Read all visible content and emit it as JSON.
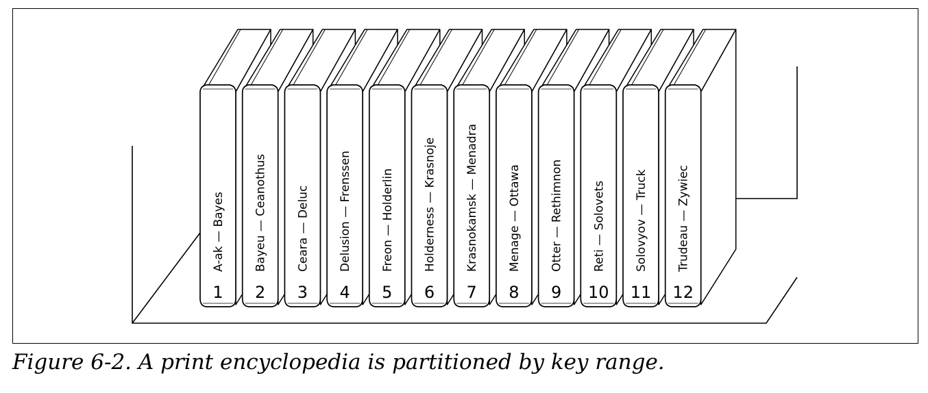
{
  "caption": "Figure 6-2. A print encyclopedia is partitioned by key range.",
  "volumes": [
    {
      "number": "1",
      "range_start": "A-ak",
      "range_end": "Bayes"
    },
    {
      "number": "2",
      "range_start": "Bayeu",
      "range_end": "Ceanothus"
    },
    {
      "number": "3",
      "range_start": "Ceara",
      "range_end": "Deluc"
    },
    {
      "number": "4",
      "range_start": "Delusion",
      "range_end": "Frenssen"
    },
    {
      "number": "5",
      "range_start": "Freon",
      "range_end": "Holderlin"
    },
    {
      "number": "6",
      "range_start": "Holderness",
      "range_end": "Krasnoje"
    },
    {
      "number": "7",
      "range_start": "Krasnokamsk",
      "range_end": "Menadra"
    },
    {
      "number": "8",
      "range_start": "Menage",
      "range_end": "Ottawa"
    },
    {
      "number": "9",
      "range_start": "Otter",
      "range_end": "Rethimnon"
    },
    {
      "number": "10",
      "range_start": "Reti",
      "range_end": "Solovets"
    },
    {
      "number": "11",
      "range_start": "Solovyov",
      "range_end": "Truck"
    },
    {
      "number": "12",
      "range_start": "Trudeau",
      "range_end": "Zywiec"
    }
  ],
  "colors": {
    "line": "#000000",
    "background": "#ffffff"
  }
}
